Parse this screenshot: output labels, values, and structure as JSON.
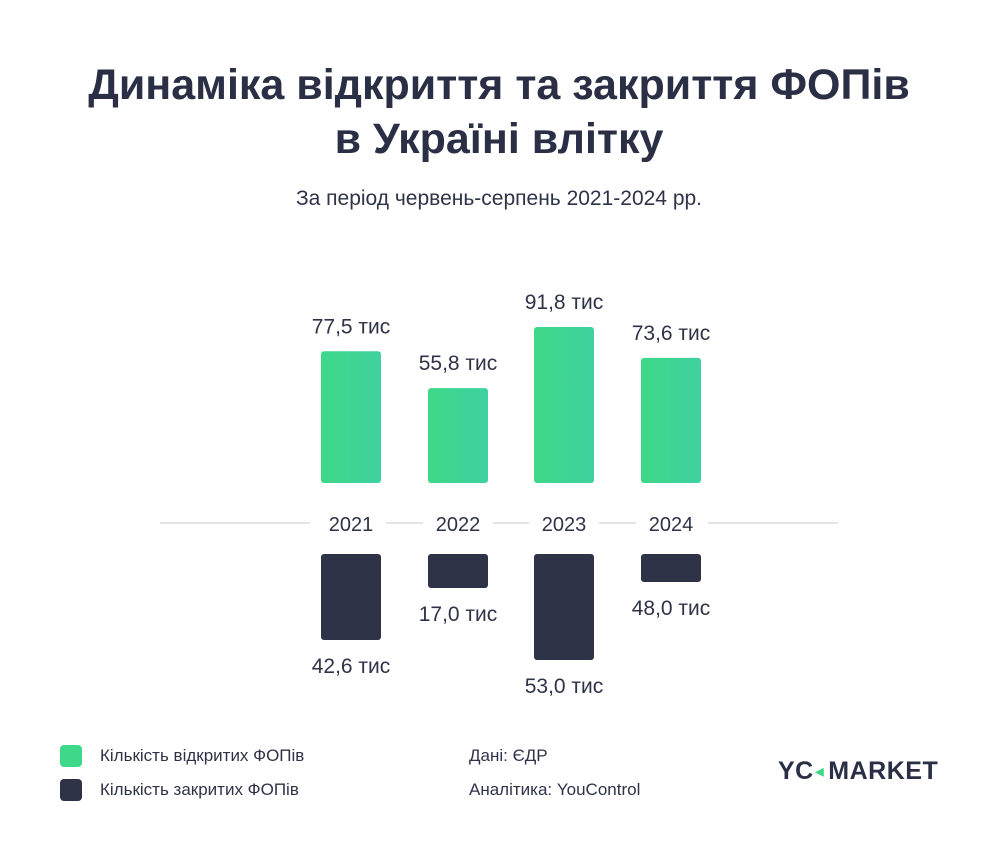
{
  "chart_data": {
    "type": "bar",
    "title_line1": "Динаміка відкриття та закриття ФОПів",
    "title_line2": "в Україні влітку",
    "subtitle": "За період червень-серпень 2021-2024 рр.",
    "categories": [
      "2021",
      "2022",
      "2023",
      "2024"
    ],
    "series": [
      {
        "name": "Кількість відкритих ФОПів",
        "values": [
          77.5,
          55.8,
          91.8,
          73.6
        ],
        "labels": [
          "77,5 тис",
          "55,8 тис",
          "91,8 тис",
          "73,6 тис"
        ],
        "color": "#3fd888",
        "direction": "up"
      },
      {
        "name": "Кількість закритих ФОПів",
        "values": [
          42.6,
          17.0,
          53.0,
          48.0
        ],
        "labels": [
          "42,6 тис",
          "17,0 тис",
          "53,0 тис",
          "48,0 тис"
        ],
        "color": "#2e3347",
        "direction": "down"
      }
    ],
    "grid": false
  },
  "legend": {
    "opened": "Кількість відкритих ФОПів",
    "closed": "Кількість закритих ФОПів"
  },
  "source": {
    "data": "Дані: ЄДР",
    "analytics": "Аналітика: YouControl"
  },
  "brand": {
    "left": "YC",
    "mark": "◂",
    "right": "MARKET"
  },
  "colors": {
    "opened": "#3fd888",
    "closed": "#2e3347",
    "axis": "#d9dbe0",
    "text": "#2a2f45"
  }
}
